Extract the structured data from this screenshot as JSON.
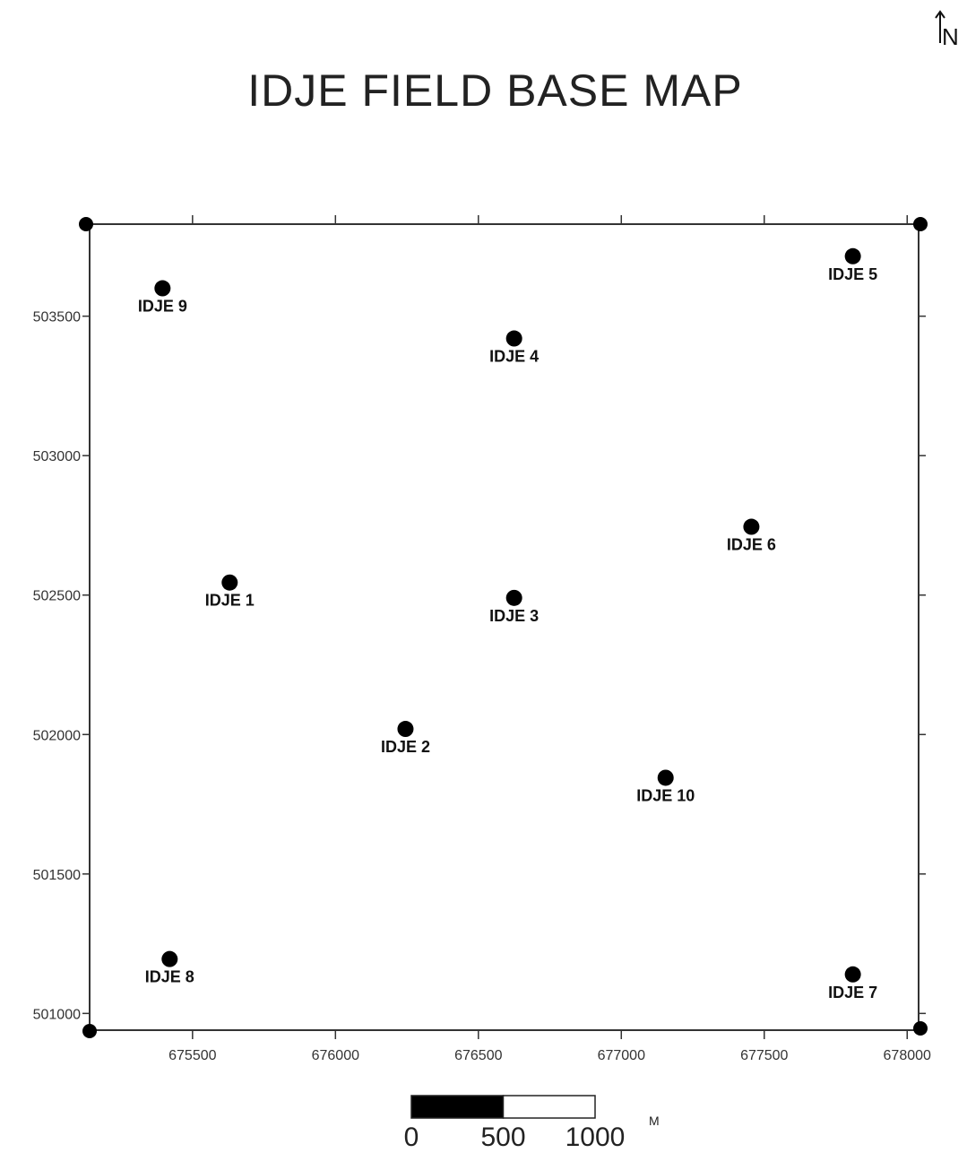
{
  "title": "IDJE FIELD BASE MAP",
  "north_label": "N",
  "chart_data": {
    "type": "scatter",
    "title": "IDJE FIELD BASE MAP",
    "xlim": [
      675140,
      678040
    ],
    "ylim": [
      500940,
      503830
    ],
    "x_ticks": [
      675500,
      676000,
      676500,
      677000,
      677500,
      678000
    ],
    "y_ticks": [
      501000,
      501500,
      502000,
      502500,
      503000,
      503500
    ],
    "x_tick_labels": [
      "675500",
      "676000",
      "676500",
      "677000",
      "677500",
      "678000"
    ],
    "y_tick_labels": [
      "501000",
      "501500",
      "502000",
      "502500",
      "503000",
      "503500"
    ],
    "grid": false,
    "legend": "none",
    "points": [
      {
        "name": "IDJE 1",
        "x": 675630,
        "y": 502545
      },
      {
        "name": "IDJE 2",
        "x": 676245,
        "y": 502020
      },
      {
        "name": "IDJE 3",
        "x": 676625,
        "y": 502490
      },
      {
        "name": "IDJE 4",
        "x": 676625,
        "y": 503420
      },
      {
        "name": "IDJE 5",
        "x": 677810,
        "y": 503715
      },
      {
        "name": "IDJE 6",
        "x": 677455,
        "y": 502745
      },
      {
        "name": "IDJE 7",
        "x": 677810,
        "y": 501140
      },
      {
        "name": "IDJE 8",
        "x": 675420,
        "y": 501195
      },
      {
        "name": "IDJE 9",
        "x": 675395,
        "y": 503600
      },
      {
        "name": "IDJE 10",
        "x": 677155,
        "y": 501845
      }
    ]
  },
  "scale_bar": {
    "labels": [
      "0",
      "500",
      "1000"
    ],
    "unit": "M"
  },
  "colors": {
    "frame": "#333333",
    "marker": "#000000",
    "scale_fill": "#000000"
  }
}
